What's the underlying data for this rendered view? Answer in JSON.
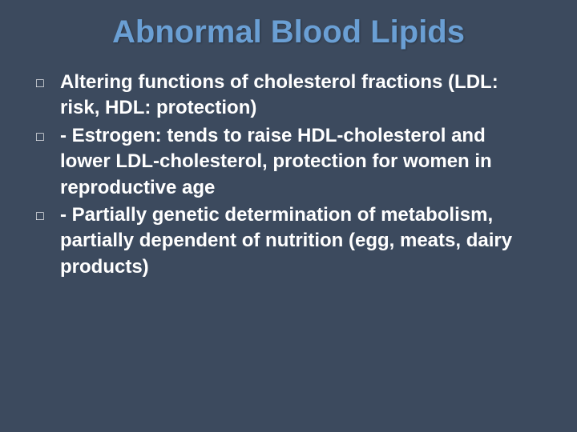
{
  "slide": {
    "background_color": "#3c4a5e",
    "title": {
      "text": "Abnormal Blood Lipids",
      "color": "#6a9fd4",
      "fontsize": 40,
      "weight": "bold",
      "align": "center"
    },
    "bullets": [
      {
        "marker": "□",
        "text": " Altering functions of cholesterol fractions (LDL: risk, HDL: protection)"
      },
      {
        "marker": "□",
        "text": "- Estrogen: tends to raise HDL-cholesterol and lower LDL-cholesterol, protection for women in reproductive age"
      },
      {
        "marker": "□",
        "text": "- Partially genetic determination of metabolism, partially dependent of nutrition (egg, meats, dairy products)"
      }
    ],
    "bullet_style": {
      "text_color": "#ffffff",
      "fontsize": 24,
      "weight": "bold",
      "marker_color": "#ffffff"
    }
  }
}
